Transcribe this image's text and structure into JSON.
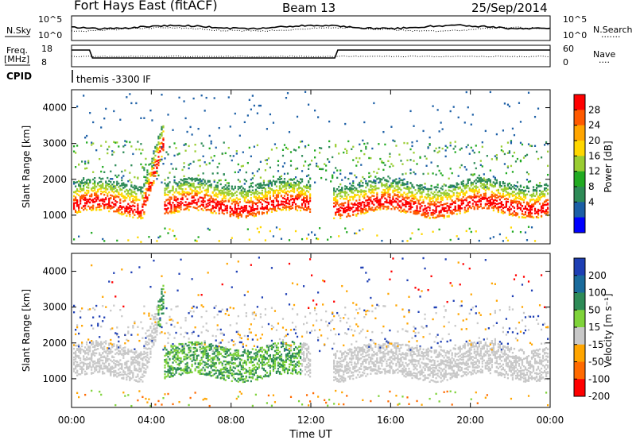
{
  "header": {
    "station": "Fort Hays East (fitACF)",
    "beam": "Beam 13",
    "date": "25/Sep/2014"
  },
  "noise_panel": {
    "left_label": "N.Sky",
    "left_ticks": [
      "10^5",
      "10^0"
    ],
    "right_ticks": [
      "10^5",
      "10^0"
    ],
    "right_label": "N.Search",
    "right_label_dots": "......."
  },
  "freq_panel": {
    "left_label_top": "Freq.",
    "left_label_unit": "[MHz]",
    "left_ticks": [
      "18",
      "8"
    ],
    "right_ticks": [
      "60",
      "0"
    ],
    "right_label": "Nave",
    "right_label_dots": "....",
    "cpid_label": "CPID",
    "cpid_value": "themis -3300 IF"
  },
  "chart_data": [
    {
      "type": "heatmap",
      "name": "power-panel",
      "ylabel": "Slant Range [km]",
      "yticks": [
        "4000",
        "3000",
        "2000",
        "1000"
      ],
      "ytick_values": [
        4000,
        3000,
        2000,
        1000
      ],
      "ylim": [
        200,
        4500
      ],
      "xlim_hours": [
        0,
        24
      ],
      "colorbar": {
        "label": "Power [dB]",
        "ticks": [
          "28",
          "24",
          "20",
          "16",
          "12",
          "8",
          "4"
        ],
        "range": [
          0,
          30
        ],
        "colors": [
          "#ff0000",
          "#ff5a00",
          "#ffa500",
          "#ffd700",
          "#9acd32",
          "#22aa22",
          "#2e8b57",
          "#1c5fa6",
          "#0000ff"
        ]
      }
    },
    {
      "type": "heatmap",
      "name": "velocity-panel",
      "ylabel": "Slant Range [km]",
      "yticks": [
        "4000",
        "3000",
        "2000",
        "1000"
      ],
      "ytick_values": [
        4000,
        3000,
        2000,
        1000
      ],
      "ylim": [
        200,
        4500
      ],
      "xlim_hours": [
        0,
        24
      ],
      "colorbar": {
        "label": "Velocity [m s⁻¹]",
        "ticks": [
          "200",
          "100",
          "50",
          "15",
          "-15",
          "-50",
          "-100",
          "-200"
        ],
        "colors": [
          "#1e3fb4",
          "#1a6b9c",
          "#2e8b57",
          "#7fd33a",
          "#c8c8c8",
          "#ffa500",
          "#ff6a00",
          "#ff0000"
        ]
      }
    }
  ],
  "xaxis": {
    "label": "Time UT",
    "ticks": [
      "00:00",
      "04:00",
      "08:00",
      "12:00",
      "16:00",
      "20:00",
      "00:00"
    ],
    "tick_hours": [
      0,
      4,
      8,
      12,
      16,
      20,
      24
    ]
  },
  "colors": {
    "frame": "#000000",
    "no_data": "#ffffff"
  }
}
